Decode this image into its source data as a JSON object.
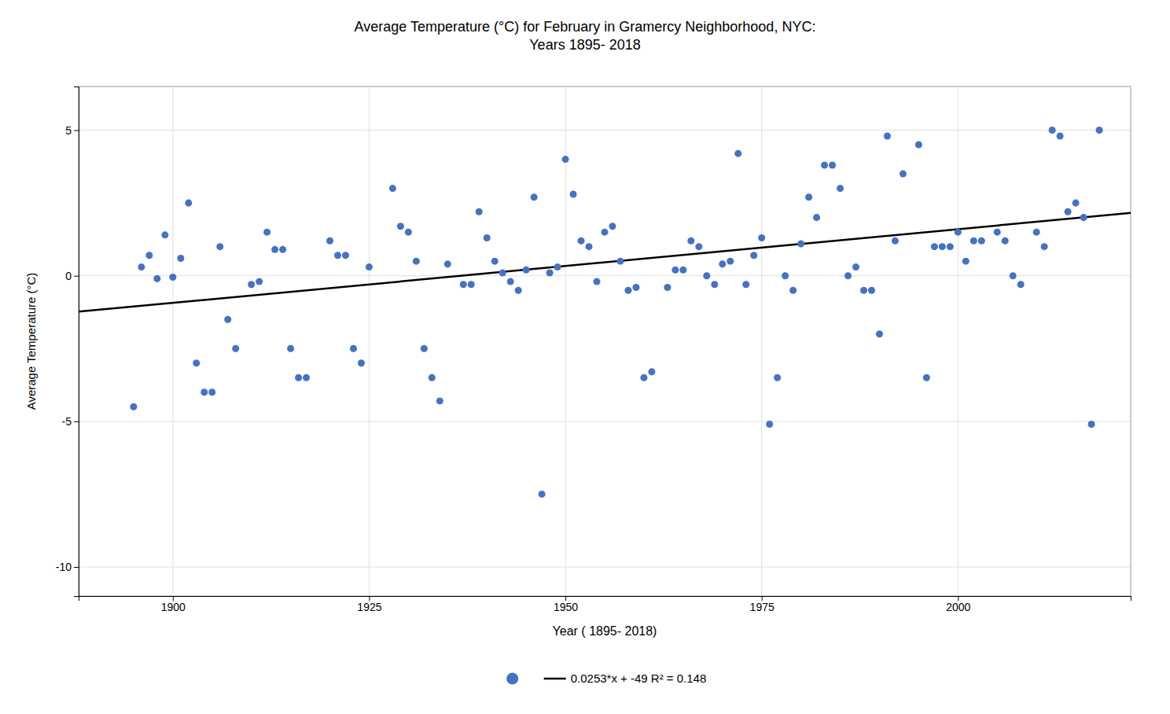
{
  "chart_data": {
    "type": "scatter",
    "title": "Average Temperature (°C) for February in Gramercy Neighborhood, NYC:\nYears 1895- 2018",
    "x_label": "Year ( 1895- 2018)",
    "y_label": "Average Temperature (°C)",
    "xlim": [
      1888,
      2022
    ],
    "ylim": [
      -11,
      6.5
    ],
    "xticks": [
      1900,
      1925,
      1950,
      1975,
      2000
    ],
    "yticks": [
      -10,
      -5,
      0,
      5
    ],
    "grid": true,
    "legend": "bottom",
    "series": [
      {
        "type": "scatter",
        "color": "#4472C4",
        "marker": "circle",
        "x": [
          1895,
          1896,
          1897,
          1898,
          1899,
          1900,
          1901,
          1902,
          1903,
          1904,
          1905,
          1906,
          1907,
          1908,
          1910,
          1911,
          1912,
          1913,
          1914,
          1915,
          1916,
          1917,
          1920,
          1921,
          1922,
          1923,
          1924,
          1925,
          1928,
          1929,
          1930,
          1931,
          1932,
          1933,
          1934,
          1935,
          1937,
          1938,
          1939,
          1940,
          1941,
          1942,
          1943,
          1944,
          1945,
          1946,
          1947,
          1948,
          1949,
          1950,
          1951,
          1952,
          1953,
          1954,
          1955,
          1956,
          1957,
          1958,
          1959,
          1960,
          1961,
          1963,
          1964,
          1965,
          1966,
          1967,
          1968,
          1969,
          1970,
          1971,
          1972,
          1973,
          1974,
          1975,
          1976,
          1977,
          1978,
          1979,
          1980,
          1981,
          1982,
          1983,
          1984,
          1985,
          1986,
          1987,
          1988,
          1989,
          1990,
          1991,
          1992,
          1993,
          1995,
          1996,
          1997,
          1998,
          1999,
          2000,
          2001,
          2002,
          2003,
          2005,
          2006,
          2007,
          2008,
          2010,
          2011,
          2012,
          2013,
          2014,
          2015,
          2016,
          2017,
          2018
        ],
        "values": [
          -4.5,
          0.3,
          0.7,
          -0.1,
          1.4,
          -0.05,
          0.6,
          2.5,
          -3.0,
          -4.0,
          -4.0,
          1.0,
          -1.5,
          -2.5,
          -0.3,
          -0.2,
          1.5,
          0.9,
          0.9,
          -2.5,
          -3.5,
          -3.5,
          1.2,
          0.7,
          0.7,
          -2.5,
          -3.0,
          0.3,
          3.0,
          1.7,
          1.5,
          0.5,
          -2.5,
          -3.5,
          -4.3,
          0.4,
          -0.3,
          -0.3,
          2.2,
          1.3,
          0.5,
          0.1,
          -0.2,
          -0.5,
          0.2,
          2.7,
          -7.5,
          0.1,
          0.3,
          4.0,
          2.8,
          1.2,
          1.0,
          -0.2,
          1.5,
          1.7,
          0.5,
          -0.5,
          -0.4,
          -3.5,
          -3.3,
          -0.4,
          0.2,
          0.2,
          1.2,
          1.0,
          0.0,
          -0.3,
          0.4,
          0.5,
          4.2,
          -0.3,
          0.7,
          1.3,
          -5.1,
          -3.5,
          0.0,
          -0.5,
          1.1,
          2.7,
          2.0,
          3.8,
          3.8,
          3.0,
          0.0,
          0.3,
          -0.5,
          -0.5,
          -2.0,
          4.8,
          1.2,
          3.5,
          4.5,
          -3.5,
          1.0,
          1.0,
          1.0,
          1.5,
          0.5,
          1.2,
          1.2,
          1.5,
          1.2,
          0.0,
          -0.3,
          1.5,
          1.0,
          5.0,
          4.8,
          2.2,
          2.5,
          2.0,
          -5.1,
          5.0
        ]
      },
      {
        "type": "line",
        "name": "0.0253*x + -49 R² = 0.148",
        "color": "#000000",
        "line_style": "solid",
        "x": [
          1888,
          2022
        ],
        "values": [
          -1.2336,
          2.1566
        ]
      }
    ]
  }
}
